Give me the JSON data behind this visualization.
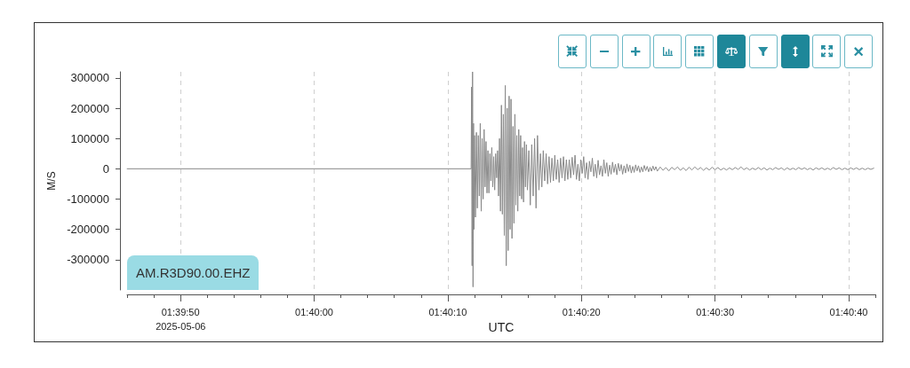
{
  "chart_data": {
    "type": "line",
    "xlabel": "UTC",
    "ylabel": "M/S",
    "annotations": [
      "2025-05-06",
      "AM.R3D90.00.EHZ"
    ],
    "color": "#8a8a8a",
    "marker": "none",
    "line_style": "solid",
    "grid": "x",
    "xlim": [
      1.662778,
      1.678333
    ],
    "ylim": [
      -400000,
      320000
    ],
    "xticks": [
      {
        "value": 1.662778,
        "label": null
      },
      {
        "value": 1.663333,
        "label": null
      },
      {
        "value": 1.663889,
        "label": "01:39:50"
      },
      {
        "value": 1.664444,
        "label": null
      },
      {
        "value": 1.665,
        "label": null
      },
      {
        "value": 1.665556,
        "label": null
      },
      {
        "value": 1.666111,
        "label": null
      },
      {
        "value": 1.666667,
        "label": "01:40:00"
      },
      {
        "value": 1.667222,
        "label": null
      },
      {
        "value": 1.667778,
        "label": null
      },
      {
        "value": 1.668333,
        "label": null
      },
      {
        "value": 1.668889,
        "label": null
      },
      {
        "value": 1.669444,
        "label": "01:40:10"
      },
      {
        "value": 1.67,
        "label": null
      },
      {
        "value": 1.670556,
        "label": null
      },
      {
        "value": 1.671111,
        "label": null
      },
      {
        "value": 1.671667,
        "label": null
      },
      {
        "value": 1.672222,
        "label": "01:40:20"
      },
      {
        "value": 1.672778,
        "label": null
      },
      {
        "value": 1.673333,
        "label": null
      },
      {
        "value": 1.673889,
        "label": null
      },
      {
        "value": 1.674444,
        "label": null
      },
      {
        "value": 1.675,
        "label": "01:40:30"
      },
      {
        "value": 1.675556,
        "label": null
      },
      {
        "value": 1.676111,
        "label": null
      },
      {
        "value": 1.676667,
        "label": null
      },
      {
        "value": 1.677222,
        "label": null
      },
      {
        "value": 1.677778,
        "label": "01:40:40"
      },
      {
        "value": 1.678333,
        "label": null
      }
    ],
    "yticks": [
      -300000,
      -200000,
      -100000,
      0,
      100000,
      200000,
      300000
    ],
    "x": [
      1.66278,
      1.66993,
      1.66994,
      1.66995,
      1.66996,
      1.66997,
      1.66998,
      1.66999,
      1.67,
      1.67002,
      1.67004,
      1.67006,
      1.67008,
      1.6701,
      1.67012,
      1.67014,
      1.67016,
      1.67018,
      1.6702,
      1.67022,
      1.67024,
      1.67026,
      1.67028,
      1.6703,
      1.67032,
      1.67034,
      1.67036,
      1.67038,
      1.6704,
      1.67042,
      1.67044,
      1.67046,
      1.67048,
      1.6705,
      1.67052,
      1.67054,
      1.67056,
      1.67058,
      1.6706,
      1.67062,
      1.67064,
      1.67066,
      1.67068,
      1.6707,
      1.67072,
      1.67074,
      1.67076,
      1.67078,
      1.6708,
      1.67082,
      1.67084,
      1.67086,
      1.67088,
      1.6709,
      1.67092,
      1.67094,
      1.67096,
      1.67098,
      1.671,
      1.67102,
      1.67104,
      1.67106,
      1.67108,
      1.6711,
      1.67113,
      1.67116,
      1.67119,
      1.67122,
      1.67125,
      1.67128,
      1.67131,
      1.67134,
      1.67137,
      1.6714,
      1.67143,
      1.67146,
      1.67149,
      1.67152,
      1.67155,
      1.67158,
      1.67161,
      1.67164,
      1.67167,
      1.6717,
      1.67173,
      1.67176,
      1.67179,
      1.67182,
      1.67185,
      1.67188,
      1.67191,
      1.67194,
      1.67197,
      1.672,
      1.67203,
      1.67206,
      1.67209,
      1.67212,
      1.67215,
      1.67218,
      1.67221,
      1.67224,
      1.67227,
      1.6723,
      1.67233,
      1.67236,
      1.67239,
      1.67242,
      1.67245,
      1.67248,
      1.67251,
      1.67254,
      1.67257,
      1.6726,
      1.67263,
      1.67266,
      1.67269,
      1.67272,
      1.67275,
      1.67278,
      1.67281,
      1.67284,
      1.67287,
      1.6729,
      1.67293,
      1.67296,
      1.67299,
      1.67302,
      1.67305,
      1.67308,
      1.67311,
      1.67314,
      1.67317,
      1.6732,
      1.67323,
      1.67326,
      1.67329,
      1.67332,
      1.67335,
      1.67338,
      1.67341,
      1.67344,
      1.67347,
      1.6735,
      1.67353,
      1.67356,
      1.67359,
      1.67362,
      1.67365,
      1.67368,
      1.67371,
      1.67374,
      1.67377,
      1.6738,
      1.67386,
      1.67392,
      1.67398,
      1.67404,
      1.6741,
      1.67416,
      1.67422,
      1.67428,
      1.67434,
      1.6744,
      1.67446,
      1.67452,
      1.67458,
      1.67464,
      1.6747,
      1.67476,
      1.67482,
      1.67488,
      1.67494,
      1.675,
      1.67506,
      1.67512,
      1.67518,
      1.67524,
      1.6753,
      1.67536,
      1.67542,
      1.67548,
      1.67554,
      1.6756,
      1.67566,
      1.67572,
      1.67578,
      1.67584,
      1.6759,
      1.67596,
      1.67602,
      1.67608,
      1.67614,
      1.6762,
      1.67626,
      1.67632,
      1.67638,
      1.67644,
      1.6765,
      1.67656,
      1.67662,
      1.67668,
      1.67674,
      1.6768,
      1.67686,
      1.67692,
      1.67698,
      1.67704,
      1.6771,
      1.67716,
      1.67722,
      1.67728,
      1.67734,
      1.6774,
      1.67746,
      1.67752,
      1.67758,
      1.67764,
      1.6777,
      1.67776,
      1.67782,
      1.67788,
      1.67794,
      1.678,
      1.67806,
      1.67812,
      1.67818,
      1.67824,
      1.6783
    ],
    "values": [
      0,
      0,
      270000,
      -320000,
      320000,
      -390000,
      150000,
      -200000,
      110000,
      -160000,
      120000,
      -130000,
      110000,
      -90000,
      150000,
      -140000,
      100000,
      -100000,
      130000,
      -60000,
      90000,
      -80000,
      60000,
      -80000,
      50000,
      -40000,
      70000,
      -60000,
      40000,
      -70000,
      50000,
      -30000,
      60000,
      -90000,
      100000,
      -140000,
      210000,
      -150000,
      180000,
      -220000,
      275000,
      -320000,
      200000,
      -270000,
      240000,
      -200000,
      230000,
      -230000,
      140000,
      -180000,
      180000,
      -120000,
      110000,
      -140000,
      130000,
      -90000,
      110000,
      -100000,
      70000,
      -110000,
      90000,
      -60000,
      80000,
      -70000,
      60000,
      -120000,
      80000,
      -90000,
      100000,
      -130000,
      110000,
      -70000,
      50000,
      -60000,
      60000,
      -40000,
      50000,
      -50000,
      40000,
      -45000,
      35000,
      -40000,
      45000,
      -35000,
      30000,
      -45000,
      35000,
      -30000,
      40000,
      -40000,
      30000,
      -35000,
      30000,
      -30000,
      38000,
      -20000,
      45000,
      -35000,
      15000,
      -40000,
      30000,
      -15000,
      40000,
      -30000,
      20000,
      -35000,
      25000,
      -10000,
      35000,
      -25000,
      15000,
      -30000,
      28000,
      -20000,
      10000,
      -25000,
      30000,
      -15000,
      20000,
      -25000,
      12000,
      -18000,
      22000,
      -12000,
      15000,
      -20000,
      18000,
      -8000,
      14000,
      -18000,
      10000,
      -14000,
      16000,
      -9000,
      12000,
      -14000,
      8000,
      -12000,
      13000,
      -7000,
      10000,
      -12000,
      6000,
      -10000,
      11000,
      -6000,
      8000,
      -10000,
      5000,
      -8000,
      9000,
      -5000,
      7000,
      -8000,
      6000,
      -5000,
      4000,
      -7000,
      5000,
      -3000,
      6000,
      -5000,
      3000,
      -6000,
      5000,
      -4000,
      6000,
      -3000,
      4000,
      -5000,
      3000,
      -4000,
      5000,
      -3000,
      4000,
      -4000,
      2000,
      -4000,
      3000,
      -3000,
      4000,
      -2000,
      6000,
      -3000,
      3000,
      -4000,
      2000,
      -3000,
      4000,
      -3000,
      3000,
      -4000,
      2000,
      -3000,
      4000,
      -2000,
      3000,
      -4000,
      3000,
      -3000,
      2000,
      -3000,
      4000,
      -2000,
      3000,
      -3000,
      2000,
      -4000,
      3000,
      -2000,
      3000,
      -3000,
      2000,
      -3000,
      4000,
      -2000,
      3000,
      -3000,
      2000,
      -3000,
      3000,
      -2000,
      3000,
      -3000,
      2000,
      -3000,
      2000,
      -2000,
      2000
    ]
  }
}
